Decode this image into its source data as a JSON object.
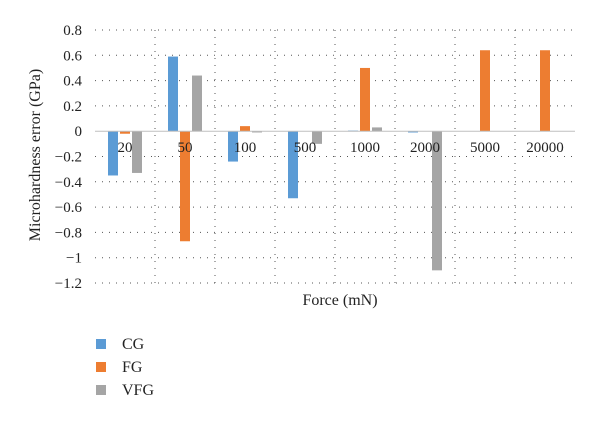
{
  "chart_data": {
    "type": "bar",
    "xlabel": "Force (mN)",
    "ylabel": "Microhardness error (GPa)",
    "categories": [
      "20",
      "50",
      "100",
      "500",
      "1000",
      "2000",
      "5000",
      "20000"
    ],
    "ylim": [
      -1.2,
      0.8
    ],
    "yticks": [
      "0.8",
      "0.6",
      "0.4",
      "0.2",
      "0",
      "−0.2",
      "−0.4",
      "−0.6",
      "−0.8",
      "−1",
      "−1.2"
    ],
    "ytick_values": [
      0.8,
      0.6,
      0.4,
      0.2,
      0,
      -0.2,
      -0.4,
      -0.6,
      -0.8,
      -1.0,
      -1.2
    ],
    "grid": "dotted",
    "legend_position": "bottom-left",
    "series": [
      {
        "name": "CG",
        "color": "#5b9bd5",
        "values": [
          -0.35,
          0.59,
          -0.24,
          -0.53,
          0.005,
          -0.01,
          0.0,
          0.0
        ]
      },
      {
        "name": "FG",
        "color": "#ed7d31",
        "values": [
          -0.02,
          -0.87,
          0.04,
          0.0,
          0.5,
          0.0,
          0.64,
          0.64
        ]
      },
      {
        "name": "VFG",
        "color": "#a5a5a5",
        "values": [
          -0.33,
          0.44,
          -0.01,
          -0.1,
          0.03,
          -1.1,
          0.0,
          0.0
        ]
      }
    ]
  }
}
